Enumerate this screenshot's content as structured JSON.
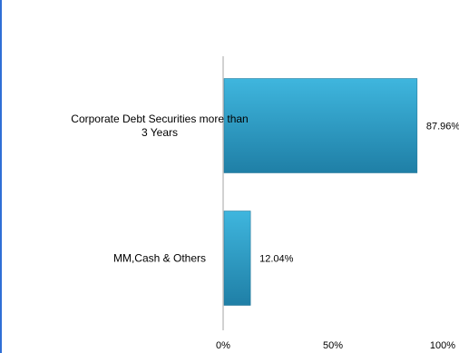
{
  "chart_data": {
    "type": "bar",
    "orientation": "horizontal",
    "categories": [
      [
        "Corporate Debt Securities more than",
        "3 Years"
      ],
      [
        "MM,Cash & Others"
      ]
    ],
    "values": [
      87.96,
      12.04
    ],
    "value_labels": [
      "87.96%",
      "12.04%"
    ],
    "xlim": [
      0,
      100
    ],
    "x_ticks": [
      0,
      50,
      100
    ],
    "x_tick_labels": [
      "0%",
      "50%",
      "100%"
    ],
    "grid": false,
    "colors": {
      "bar_top": "#3fb6de",
      "bar_bottom": "#1f7fa6",
      "bar_edge": "#1a6f92",
      "axis": "#a6a6a6"
    }
  }
}
